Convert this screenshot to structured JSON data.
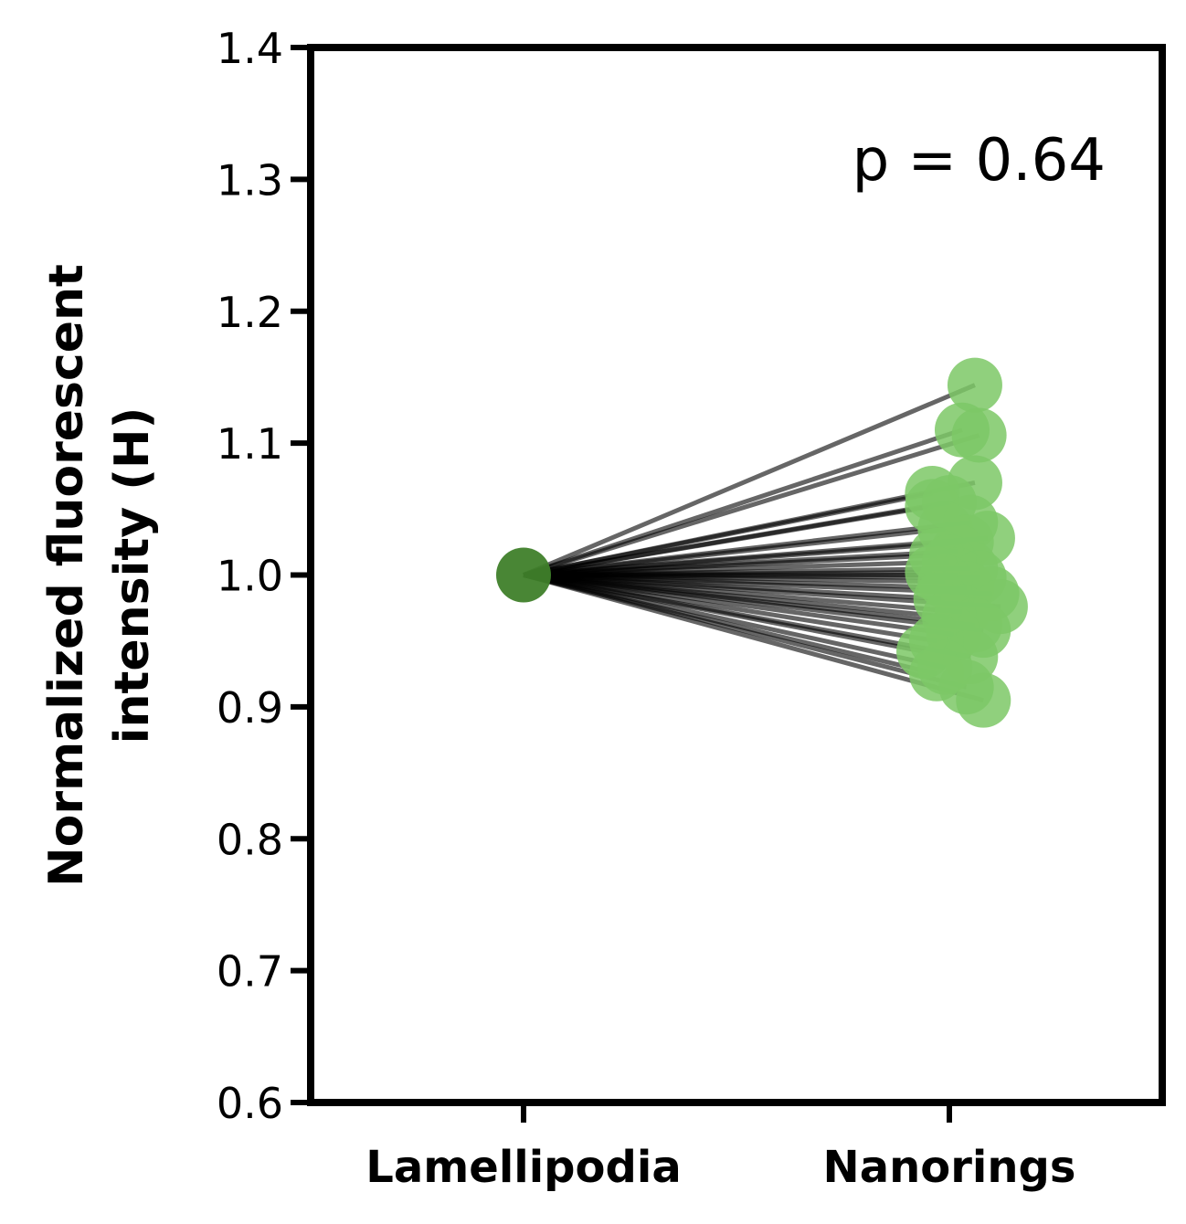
{
  "chart_data": {
    "type": "scatter",
    "categories": [
      "Lamellipodia",
      "Nanorings"
    ],
    "ylabel_lines": [
      "Normalized fluorescent",
      "intensity (H)"
    ],
    "yticks": [
      "0.6",
      "0.7",
      "0.8",
      "0.9",
      "1.0",
      "1.1",
      "1.2",
      "1.3",
      "1.4"
    ],
    "ylim": [
      0.6,
      1.4
    ],
    "annotation": "p = 0.64",
    "colors": {
      "lamellipodia": "#3f7f2a",
      "nanorings": "#7cc866",
      "lines": "#000000"
    },
    "series": [
      {
        "values_lamellipodia": [
          1.0
        ],
        "pairs": [
          {
            "x": 1.06,
            "y": 1.144
          },
          {
            "x": 1.03,
            "y": 1.11
          },
          {
            "x": 1.07,
            "y": 1.106
          },
          {
            "x": 1.06,
            "y": 1.07
          },
          {
            "x": 0.96,
            "y": 1.062
          },
          {
            "x": 1.0,
            "y": 1.055
          },
          {
            "x": 0.96,
            "y": 1.052
          },
          {
            "x": 1.05,
            "y": 1.04
          },
          {
            "x": 0.99,
            "y": 1.035
          },
          {
            "x": 1.09,
            "y": 1.028
          },
          {
            "x": 1.04,
            "y": 1.025
          },
          {
            "x": 1.02,
            "y": 1.018
          },
          {
            "x": 0.97,
            "y": 1.015
          },
          {
            "x": 1.0,
            "y": 1.01
          },
          {
            "x": 1.05,
            "y": 1.005
          },
          {
            "x": 0.96,
            "y": 1.002
          },
          {
            "x": 1.02,
            "y": 1.0
          },
          {
            "x": 1.07,
            "y": 0.998
          },
          {
            "x": 0.99,
            "y": 0.995
          },
          {
            "x": 1.04,
            "y": 0.99
          },
          {
            "x": 1.1,
            "y": 0.986
          },
          {
            "x": 0.98,
            "y": 0.982
          },
          {
            "x": 1.12,
            "y": 0.976
          },
          {
            "x": 1.03,
            "y": 0.972
          },
          {
            "x": 1.0,
            "y": 0.968
          },
          {
            "x": 1.06,
            "y": 0.962
          },
          {
            "x": 1.08,
            "y": 0.958
          },
          {
            "x": 1.01,
            "y": 0.955
          },
          {
            "x": 0.97,
            "y": 0.95
          },
          {
            "x": 0.94,
            "y": 0.942
          },
          {
            "x": 1.05,
            "y": 0.938
          },
          {
            "x": 0.99,
            "y": 0.93
          },
          {
            "x": 0.97,
            "y": 0.925
          },
          {
            "x": 1.04,
            "y": 0.915
          },
          {
            "x": 1.08,
            "y": 0.905
          }
        ]
      }
    ]
  }
}
